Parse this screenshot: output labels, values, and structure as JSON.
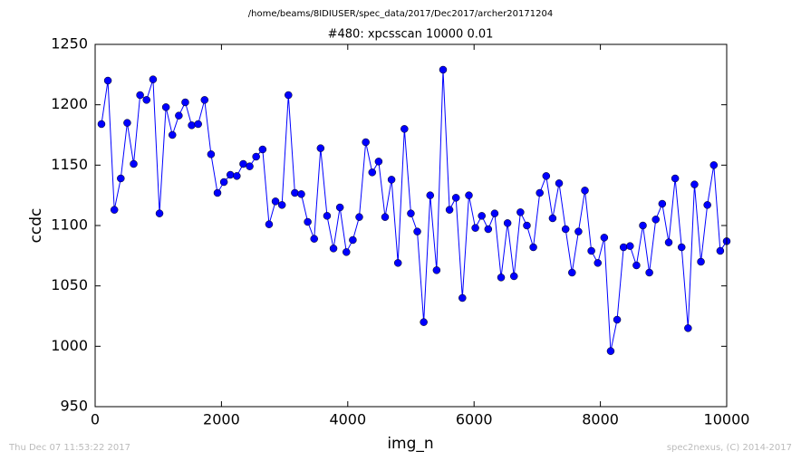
{
  "chart_data": {
    "type": "line",
    "suptitle": "/home/beams/8IDIUSER/spec_data/2017/Dec2017/archer20171204",
    "title": "#480: xpcsscan 10000 0.01",
    "xlabel": "img_n",
    "ylabel": "ccdc",
    "footer_left": "Thu Dec 07 11:53:22 2017",
    "footer_right": "spec2nexus, (C) 2014-2017",
    "x": [
      100,
      202,
      304,
      406,
      508,
      610,
      712,
      814,
      917,
      1019,
      1121,
      1223,
      1325,
      1427,
      1529,
      1631,
      1733,
      1835,
      1937,
      2039,
      2141,
      2243,
      2345,
      2447,
      2549,
      2652,
      2754,
      2856,
      2958,
      3060,
      3162,
      3264,
      3366,
      3468,
      3570,
      3672,
      3774,
      3876,
      3978,
      4080,
      4182,
      4285,
      4387,
      4489,
      4591,
      4693,
      4795,
      4897,
      4999,
      5101,
      5203,
      5305,
      5407,
      5509,
      5611,
      5713,
      5815,
      5918,
      6020,
      6122,
      6224,
      6326,
      6428,
      6530,
      6632,
      6734,
      6836,
      6938,
      7040,
      7142,
      7244,
      7346,
      7449,
      7551,
      7653,
      7755,
      7857,
      7959,
      8061,
      8163,
      8265,
      8367,
      8469,
      8571,
      8673,
      8775,
      8877,
      8979,
      9082,
      9184,
      9286,
      9388,
      9490,
      9592,
      9694,
      9796,
      9898,
      10000
    ],
    "series": [
      {
        "name": "ccdc",
        "color": "#0000ff",
        "values": [
          1184,
          1220,
          1113,
          1139,
          1185,
          1151,
          1208,
          1204,
          1221,
          1110,
          1198,
          1175,
          1191,
          1202,
          1183,
          1184,
          1204,
          1159,
          1127,
          1136,
          1142,
          1141,
          1151,
          1149,
          1157,
          1163,
          1101,
          1120,
          1117,
          1208,
          1127,
          1126,
          1103,
          1089,
          1164,
          1108,
          1081,
          1115,
          1078,
          1088,
          1107,
          1169,
          1144,
          1153,
          1107,
          1138,
          1069,
          1180,
          1110,
          1095,
          1020,
          1125,
          1063,
          1229,
          1113,
          1123,
          1040,
          1125,
          1098,
          1108,
          1097,
          1110,
          1057,
          1102,
          1058,
          1111,
          1100,
          1082,
          1127,
          1141,
          1106,
          1135,
          1097,
          1061,
          1095,
          1129,
          1079,
          1069,
          1090,
          996,
          1022,
          1082,
          1083,
          1067,
          1100,
          1061,
          1105,
          1118,
          1086,
          1139,
          1082,
          1015,
          1134,
          1070,
          1117,
          1150,
          1079,
          1087
        ]
      }
    ],
    "xlim": [
      0,
      10000
    ],
    "xticks": [
      0,
      2000,
      4000,
      6000,
      8000,
      10000
    ],
    "ylim": [
      950,
      1250
    ],
    "yticks": [
      950,
      1000,
      1050,
      1100,
      1150,
      1200,
      1250
    ],
    "grid": false
  }
}
